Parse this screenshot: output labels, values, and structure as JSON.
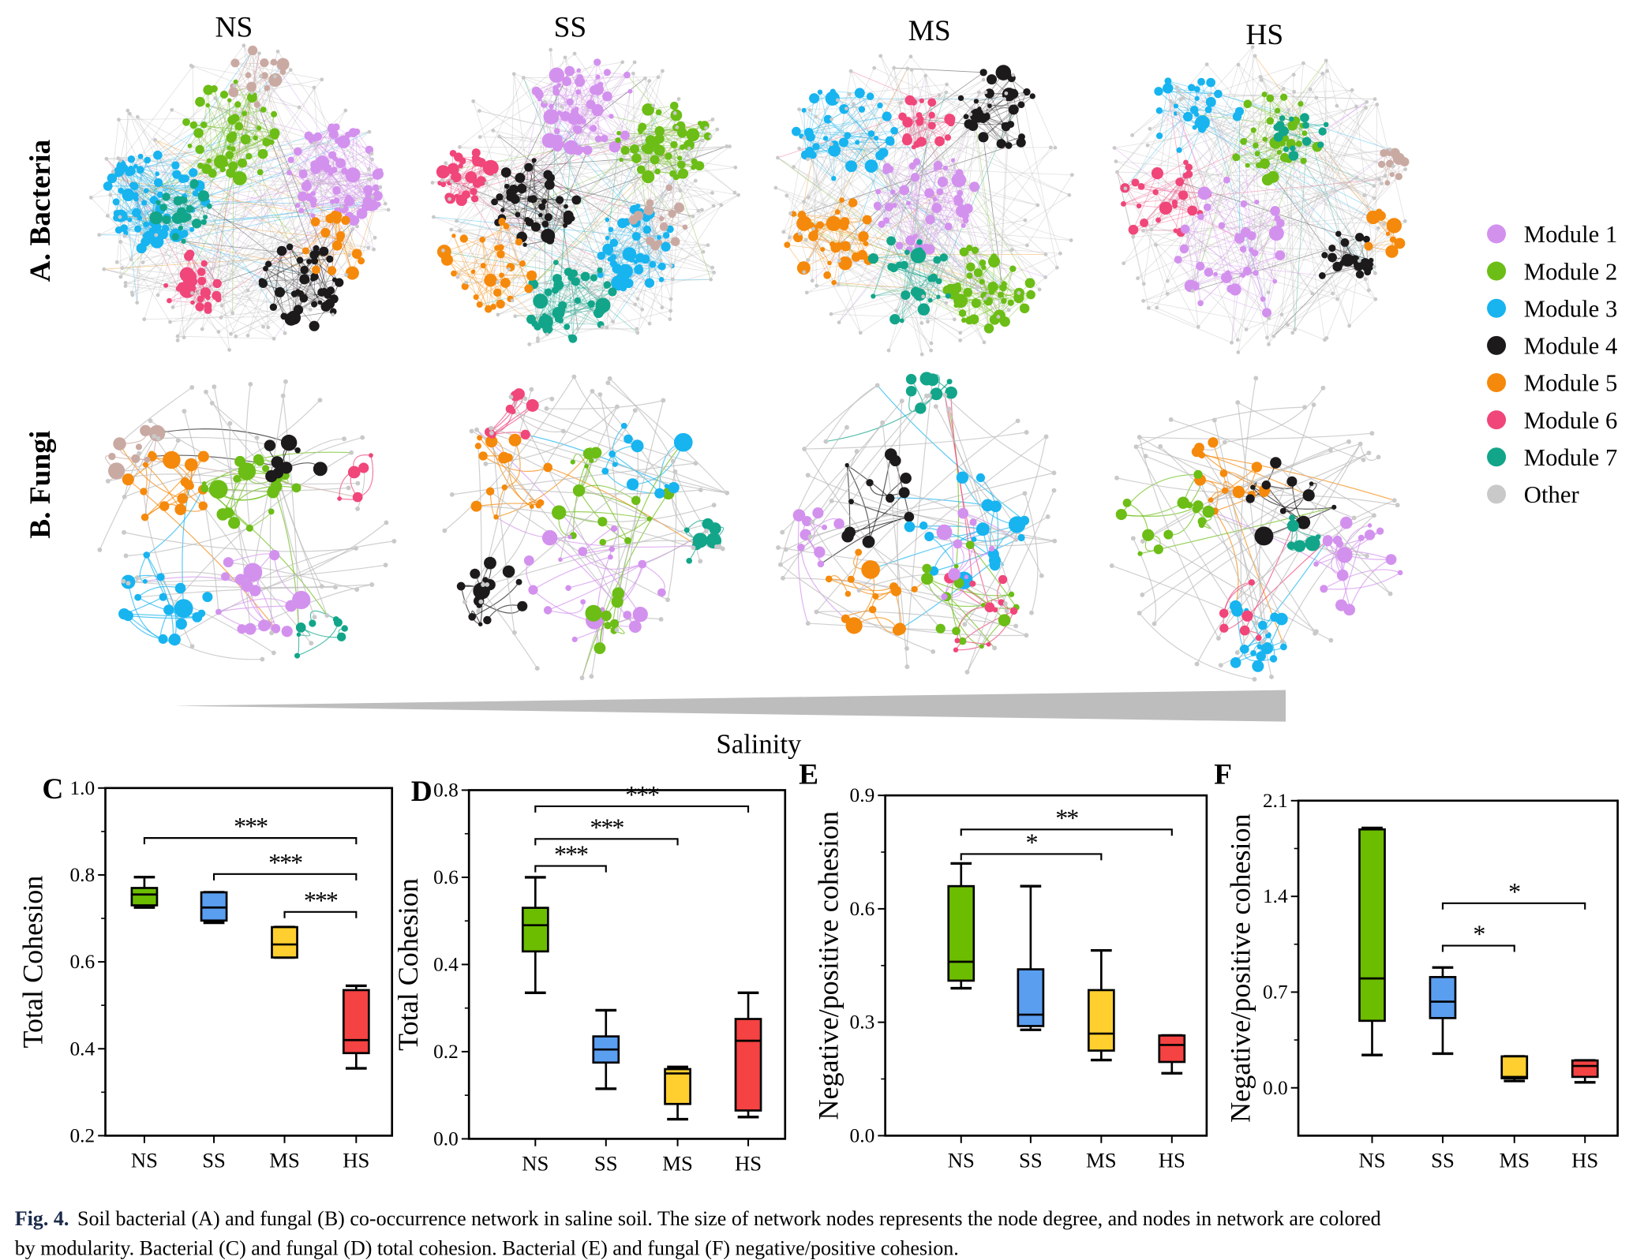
{
  "figure": {
    "network_titles": [
      "NS",
      "SS",
      "MS",
      "HS"
    ],
    "row_labels": {
      "bacteria": "A. Bacteria",
      "fungi": "B. Fungi"
    },
    "gradient_label": "Salinity",
    "legend": [
      {
        "label": "Module 1",
        "color": "#d391ee"
      },
      {
        "label": "Module 2",
        "color": "#6cbd16"
      },
      {
        "label": "Module 3",
        "color": "#17b4f0"
      },
      {
        "label": "Module 4",
        "color": "#1c1a1a"
      },
      {
        "label": "Module 5",
        "color": "#f5890b"
      },
      {
        "label": "Module 6",
        "color": "#f0467a"
      },
      {
        "label": "Module 7",
        "color": "#12a58a"
      },
      {
        "label": "Other",
        "color": "#c9c9c9"
      }
    ],
    "caption": {
      "label": "Fig. 4.",
      "line1": "Soil bacterial (A) and fungal (B) co-occurrence network in saline soil. The size of network nodes represents the node degree, and nodes in network are colored",
      "line2": "by modularity. Bacterial (C) and fungal (D) total cohesion. Bacterial (E) and fungal (F) negative/positive cohesion."
    }
  },
  "chart_data": [
    {
      "panel": "C",
      "type": "box",
      "ylabel": "Total Cohesion",
      "categories": [
        "NS",
        "SS",
        "MS",
        "HS"
      ],
      "colors": [
        "#6cbd00",
        "#5a9ef0",
        "#fecf2f",
        "#f54242"
      ],
      "ylim": [
        0.2,
        1.0
      ],
      "yticks": [
        "0.2",
        "0.4",
        "0.6",
        "0.8",
        "1.0"
      ],
      "boxes": [
        {
          "min": 0.725,
          "q1": 0.73,
          "median": 0.755,
          "q3": 0.77,
          "max": 0.795
        },
        {
          "min": 0.69,
          "q1": 0.695,
          "median": 0.725,
          "q3": 0.76,
          "max": 0.76
        },
        {
          "min": 0.61,
          "q1": 0.61,
          "median": 0.64,
          "q3": 0.68,
          "max": 0.68
        },
        {
          "min": 0.355,
          "q1": 0.39,
          "median": 0.42,
          "q3": 0.535,
          "max": 0.545
        }
      ],
      "significance": [
        {
          "from": "NS",
          "to": "HS",
          "label": "***",
          "y": 0.885
        },
        {
          "from": "SS",
          "to": "HS",
          "label": "***",
          "y": 0.802
        },
        {
          "from": "MS",
          "to": "HS",
          "label": "***",
          "y": 0.715
        }
      ]
    },
    {
      "panel": "D",
      "type": "box",
      "ylabel": "Total Cohesion",
      "categories": [
        "NS",
        "SS",
        "MS",
        "HS"
      ],
      "colors": [
        "#6cbd00",
        "#5a9ef0",
        "#fecf2f",
        "#f54242"
      ],
      "ylim": [
        0.0,
        0.8
      ],
      "yticks": [
        "0.0",
        "0.2",
        "0.4",
        "0.6",
        "0.8"
      ],
      "boxes": [
        {
          "min": 0.335,
          "q1": 0.43,
          "median": 0.49,
          "q3": 0.53,
          "max": 0.6
        },
        {
          "min": 0.115,
          "q1": 0.175,
          "median": 0.205,
          "q3": 0.235,
          "max": 0.295
        },
        {
          "min": 0.045,
          "q1": 0.08,
          "median": 0.15,
          "q3": 0.16,
          "max": 0.165
        },
        {
          "min": 0.05,
          "q1": 0.065,
          "median": 0.225,
          "q3": 0.275,
          "max": 0.335
        }
      ],
      "significance": [
        {
          "from": "NS",
          "to": "HS",
          "label": "***",
          "y": 0.763
        },
        {
          "from": "NS",
          "to": "MS",
          "label": "***",
          "y": 0.688
        },
        {
          "from": "NS",
          "to": "SS",
          "label": "***",
          "y": 0.626
        }
      ]
    },
    {
      "panel": "E",
      "type": "box",
      "ylabel": "Negative/positive cohesion",
      "categories": [
        "NS",
        "SS",
        "MS",
        "HS"
      ],
      "colors": [
        "#6cbd00",
        "#5a9ef0",
        "#fecf2f",
        "#f54242"
      ],
      "ylim": [
        0.0,
        0.9
      ],
      "yticks": [
        "0.0",
        "0.3",
        "0.6",
        "0.9"
      ],
      "boxes": [
        {
          "min": 0.39,
          "q1": 0.41,
          "median": 0.46,
          "q3": 0.66,
          "max": 0.72
        },
        {
          "min": 0.28,
          "q1": 0.29,
          "median": 0.32,
          "q3": 0.44,
          "max": 0.66
        },
        {
          "min": 0.2,
          "q1": 0.225,
          "median": 0.27,
          "q3": 0.385,
          "max": 0.49
        },
        {
          "min": 0.165,
          "q1": 0.195,
          "median": 0.24,
          "q3": 0.265,
          "max": 0.265
        }
      ],
      "significance": [
        {
          "from": "NS",
          "to": "HS",
          "label": "**",
          "y": 0.81
        },
        {
          "from": "NS",
          "to": "MS",
          "label": "*",
          "y": 0.745
        }
      ]
    },
    {
      "panel": "F",
      "type": "box",
      "ylabel": "Negative/positive cohesion",
      "categories": [
        "NS",
        "SS",
        "MS",
        "HS"
      ],
      "colors": [
        "#6cbd00",
        "#5a9ef0",
        "#fecf2f",
        "#f54242"
      ],
      "ylim": [
        -0.35,
        2.1
      ],
      "yticks": [
        "0.0",
        "0.7",
        "1.4",
        "2.1"
      ],
      "boxes": [
        {
          "min": 0.24,
          "q1": 0.49,
          "median": 0.8,
          "q3": 1.89,
          "max": 1.9
        },
        {
          "min": 0.25,
          "q1": 0.51,
          "median": 0.63,
          "q3": 0.81,
          "max": 0.88
        },
        {
          "min": 0.05,
          "q1": 0.07,
          "median": 0.08,
          "q3": 0.23,
          "max": 0.23
        },
        {
          "min": 0.04,
          "q1": 0.08,
          "median": 0.16,
          "q3": 0.2,
          "max": 0.2
        }
      ],
      "significance": [
        {
          "from": "SS",
          "to": "HS",
          "label": "*",
          "y": 1.35
        },
        {
          "from": "SS",
          "to": "MS",
          "label": "*",
          "y": 1.04
        }
      ]
    }
  ]
}
